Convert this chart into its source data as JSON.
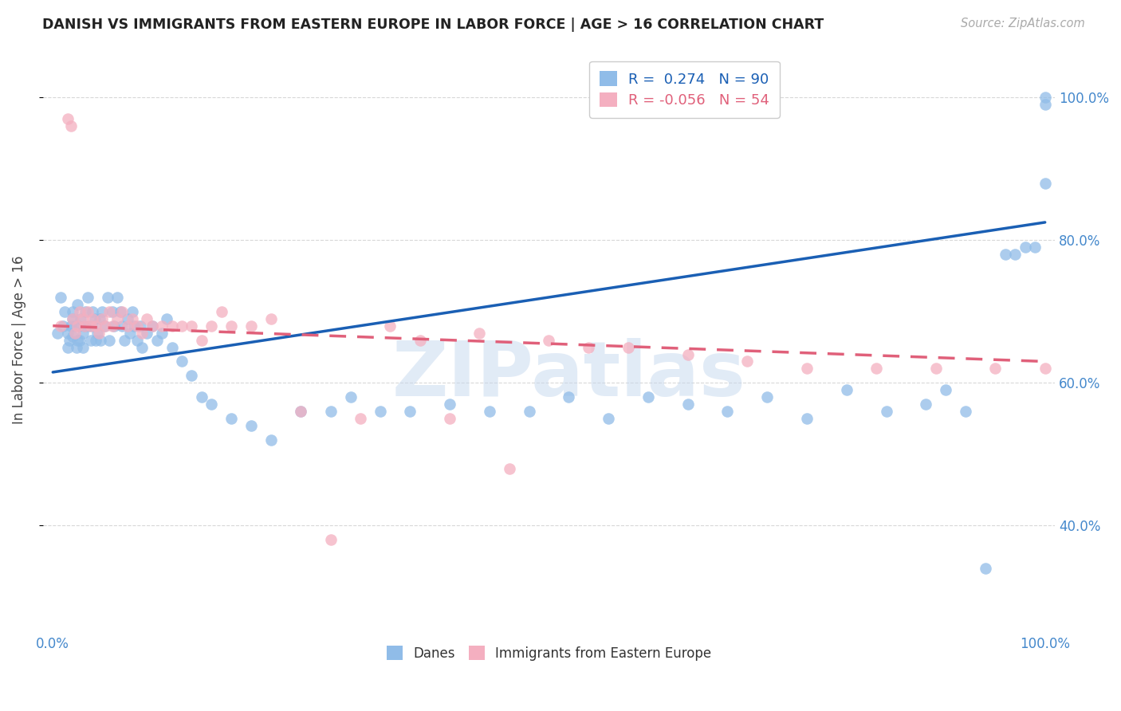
{
  "title": "DANISH VS IMMIGRANTS FROM EASTERN EUROPE IN LABOR FORCE | AGE > 16 CORRELATION CHART",
  "source": "Source: ZipAtlas.com",
  "ylabel": "In Labor Force | Age > 16",
  "ytick_labels": [
    "40.0%",
    "60.0%",
    "80.0%",
    "100.0%"
  ],
  "ytick_values": [
    0.4,
    0.6,
    0.8,
    1.0
  ],
  "xlim": [
    -0.01,
    1.01
  ],
  "ylim": [
    0.255,
    1.065
  ],
  "blue_legend": "R =  0.274   N = 90",
  "pink_legend": "R = -0.056   N = 54",
  "blue_R": 0.274,
  "pink_R": -0.056,
  "blue_color": "#90bce8",
  "pink_color": "#f4afc0",
  "blue_line_color": "#1a5fb4",
  "pink_line_color": "#e0607a",
  "watermark": "ZIPatlas",
  "background_color": "#ffffff",
  "grid_color": "#d8d8d8",
  "blue_x": [
    0.005,
    0.008,
    0.01,
    0.012,
    0.015,
    0.015,
    0.017,
    0.018,
    0.02,
    0.02,
    0.02,
    0.022,
    0.024,
    0.025,
    0.025,
    0.026,
    0.027,
    0.028,
    0.03,
    0.03,
    0.032,
    0.033,
    0.035,
    0.036,
    0.038,
    0.04,
    0.04,
    0.042,
    0.043,
    0.045,
    0.047,
    0.048,
    0.05,
    0.052,
    0.055,
    0.057,
    0.06,
    0.062,
    0.065,
    0.068,
    0.07,
    0.072,
    0.075,
    0.078,
    0.08,
    0.082,
    0.085,
    0.088,
    0.09,
    0.095,
    0.1,
    0.105,
    0.11,
    0.115,
    0.12,
    0.13,
    0.14,
    0.15,
    0.16,
    0.18,
    0.2,
    0.22,
    0.25,
    0.28,
    0.3,
    0.33,
    0.36,
    0.4,
    0.44,
    0.48,
    0.52,
    0.56,
    0.6,
    0.64,
    0.68,
    0.72,
    0.76,
    0.8,
    0.84,
    0.88,
    0.9,
    0.92,
    0.94,
    0.96,
    0.97,
    0.98,
    0.99,
    1.0,
    1.0,
    1.0
  ],
  "blue_y": [
    0.67,
    0.72,
    0.68,
    0.7,
    0.67,
    0.65,
    0.66,
    0.68,
    0.69,
    0.7,
    0.665,
    0.68,
    0.65,
    0.66,
    0.71,
    0.68,
    0.66,
    0.69,
    0.67,
    0.65,
    0.68,
    0.7,
    0.72,
    0.68,
    0.66,
    0.7,
    0.68,
    0.69,
    0.66,
    0.67,
    0.69,
    0.66,
    0.7,
    0.68,
    0.72,
    0.66,
    0.7,
    0.68,
    0.72,
    0.7,
    0.68,
    0.66,
    0.69,
    0.67,
    0.7,
    0.68,
    0.66,
    0.68,
    0.65,
    0.67,
    0.68,
    0.66,
    0.67,
    0.69,
    0.65,
    0.63,
    0.61,
    0.58,
    0.57,
    0.55,
    0.54,
    0.52,
    0.56,
    0.56,
    0.58,
    0.56,
    0.56,
    0.57,
    0.56,
    0.56,
    0.58,
    0.55,
    0.58,
    0.57,
    0.56,
    0.58,
    0.55,
    0.59,
    0.56,
    0.57,
    0.59,
    0.56,
    0.34,
    0.78,
    0.78,
    0.79,
    0.79,
    0.88,
    0.99,
    1.0
  ],
  "pink_x": [
    0.008,
    0.015,
    0.018,
    0.02,
    0.022,
    0.025,
    0.027,
    0.03,
    0.032,
    0.035,
    0.038,
    0.04,
    0.043,
    0.046,
    0.05,
    0.053,
    0.057,
    0.06,
    0.065,
    0.07,
    0.075,
    0.08,
    0.085,
    0.09,
    0.095,
    0.1,
    0.11,
    0.12,
    0.13,
    0.14,
    0.15,
    0.16,
    0.17,
    0.18,
    0.2,
    0.22,
    0.25,
    0.28,
    0.31,
    0.34,
    0.37,
    0.4,
    0.43,
    0.46,
    0.5,
    0.54,
    0.58,
    0.64,
    0.7,
    0.76,
    0.83,
    0.89,
    0.95,
    1.0
  ],
  "pink_y": [
    0.68,
    0.97,
    0.96,
    0.69,
    0.67,
    0.68,
    0.7,
    0.69,
    0.68,
    0.7,
    0.68,
    0.69,
    0.68,
    0.67,
    0.69,
    0.68,
    0.7,
    0.68,
    0.69,
    0.7,
    0.68,
    0.69,
    0.68,
    0.67,
    0.69,
    0.68,
    0.68,
    0.68,
    0.68,
    0.68,
    0.66,
    0.68,
    0.7,
    0.68,
    0.68,
    0.69,
    0.56,
    0.38,
    0.55,
    0.68,
    0.66,
    0.55,
    0.67,
    0.48,
    0.66,
    0.65,
    0.65,
    0.64,
    0.63,
    0.62,
    0.62,
    0.62,
    0.62,
    0.62
  ],
  "blue_line_x0": 0.0,
  "blue_line_x1": 1.0,
  "blue_line_y0": 0.615,
  "blue_line_y1": 0.825,
  "pink_line_x0": 0.0,
  "pink_line_x1": 1.0,
  "pink_line_y0": 0.68,
  "pink_line_y1": 0.63
}
